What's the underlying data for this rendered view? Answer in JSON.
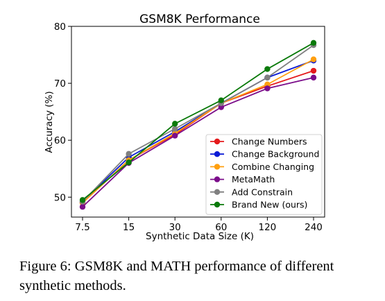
{
  "chart_data": {
    "type": "line",
    "title": "GSM8K Performance",
    "xlabel": "Synthetic Data Size (K)",
    "ylabel": "Accuracy (%)",
    "x_categories": [
      "7.5",
      "15",
      "30",
      "60",
      "120",
      "240"
    ],
    "yticks": [
      "50",
      "60",
      "70",
      "80"
    ],
    "ylim": [
      46.5,
      80
    ],
    "grid": false,
    "legend_position": "lower-right",
    "series": [
      {
        "name": "Change Numbers",
        "color": "#e41a1c",
        "values": [
          49.0,
          56.5,
          61.0,
          66.5,
          69.5,
          72.2
        ]
      },
      {
        "name": "Change Background",
        "color": "#0b1bd6",
        "values": [
          49.2,
          57.0,
          61.5,
          66.5,
          71.0,
          74.0
        ]
      },
      {
        "name": "Combine Changing",
        "color": "#ff9f0f",
        "values": [
          49.0,
          56.5,
          61.2,
          66.5,
          69.8,
          74.2
        ]
      },
      {
        "name": "MetaMath",
        "color": "#7b0d8a",
        "values": [
          48.3,
          56.0,
          60.8,
          65.8,
          69.1,
          71.0
        ]
      },
      {
        "name": "Add Constrain",
        "color": "#808080",
        "values": [
          49.2,
          57.6,
          62.0,
          66.5,
          71.0,
          76.7
        ]
      },
      {
        "name": "Brand New (ours)",
        "color": "#0a7a0a",
        "values": [
          49.5,
          56.1,
          62.9,
          67.0,
          72.5,
          77.1
        ]
      }
    ]
  },
  "caption": {
    "text": "Figure 6:  GSM8K and MATH performance of different synthetic methods."
  }
}
